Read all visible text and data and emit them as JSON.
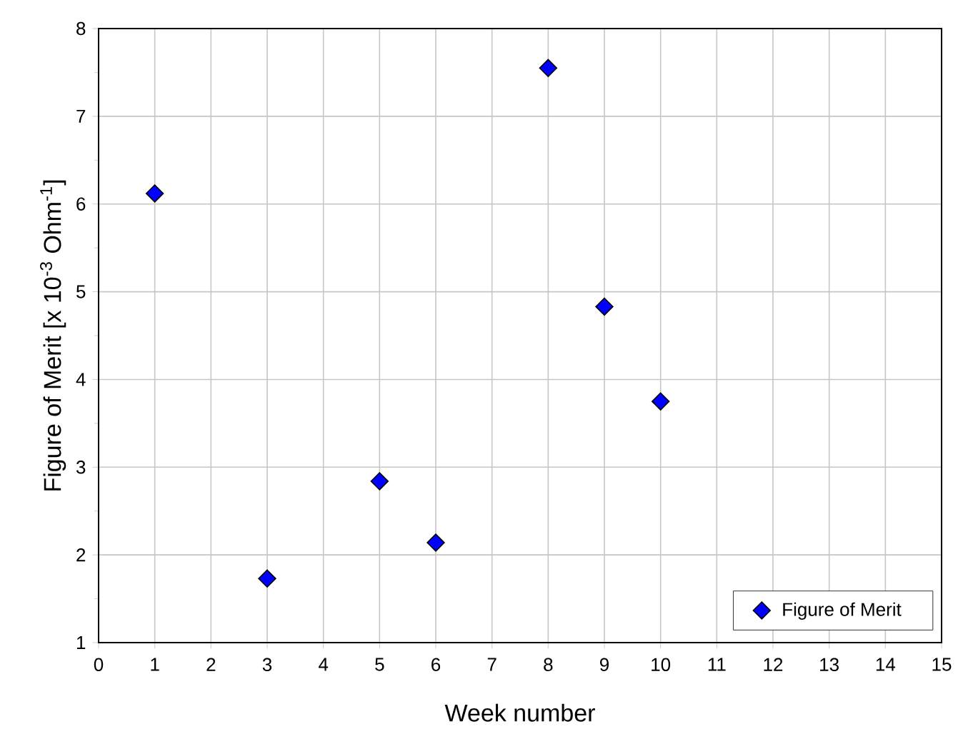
{
  "chart_data": {
    "type": "scatter",
    "xlabel": "Week number",
    "ylabel": "Figure of Merit [x 10$^{-3}$ Ohm$^{-1}$]",
    "x": [
      1,
      3,
      5,
      6,
      8,
      9,
      10
    ],
    "series": [
      {
        "name": "Figure of Merit",
        "color": "#0000ff",
        "values": [
          6.12,
          1.73,
          2.84,
          2.14,
          7.55,
          4.83,
          3.75
        ]
      }
    ],
    "xlim": [
      0,
      15
    ],
    "ylim": [
      1,
      8
    ],
    "xticks": [
      0,
      1,
      2,
      3,
      4,
      5,
      6,
      7,
      8,
      9,
      10,
      11,
      12,
      13,
      14,
      15
    ],
    "yticks": [
      1,
      2,
      3,
      4,
      5,
      6,
      7,
      8
    ],
    "grid": true,
    "legend": "bottom right",
    "marker": "diamond"
  }
}
